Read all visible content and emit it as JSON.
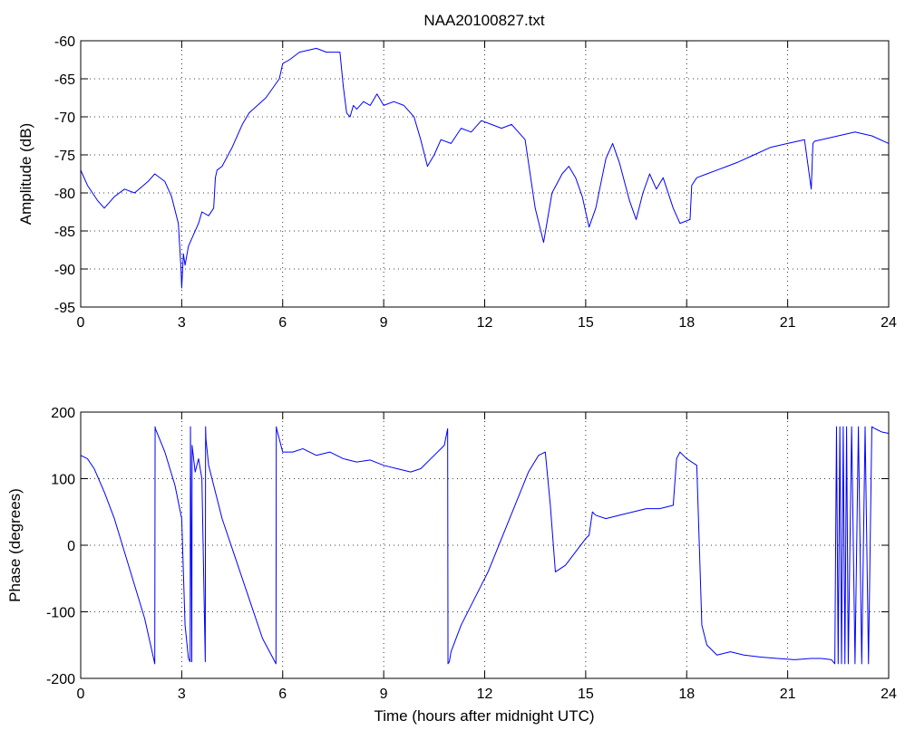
{
  "chart_data": [
    {
      "type": "line",
      "title": "NAA20100827.txt",
      "xlabel": "",
      "ylabel": "Amplitude (dB)",
      "xlim": [
        0,
        24
      ],
      "ylim": [
        -95,
        -60
      ],
      "xticks": [
        0,
        3,
        6,
        9,
        12,
        15,
        18,
        21,
        24
      ],
      "yticks": [
        -95,
        -90,
        -85,
        -80,
        -75,
        -70,
        -65,
        -60
      ],
      "grid": true,
      "color": "#0000ff",
      "series": [
        {
          "x": [
            0,
            0.2,
            0.5,
            0.7,
            1.0,
            1.3,
            1.6,
            2.0,
            2.2,
            2.5,
            2.7,
            2.9,
            2.98,
            3.0,
            3.05,
            3.1,
            3.2,
            3.3,
            3.5,
            3.6,
            3.8,
            3.95,
            4.0,
            4.05,
            4.2,
            4.5,
            4.8,
            5.0,
            5.5,
            5.9,
            6.0,
            6.2,
            6.5,
            7.0,
            7.3,
            7.7,
            7.8,
            7.9,
            8.0,
            8.1,
            8.2,
            8.4,
            8.6,
            8.8,
            9.0,
            9.3,
            9.6,
            9.9,
            10.1,
            10.3,
            10.5,
            10.7,
            11.0,
            11.3,
            11.6,
            11.9,
            12.2,
            12.5,
            12.8,
            13.2,
            13.5,
            13.75,
            14.0,
            14.3,
            14.5,
            14.7,
            14.9,
            15.1,
            15.3,
            15.6,
            15.8,
            16.0,
            16.3,
            16.5,
            16.7,
            16.9,
            17.1,
            17.3,
            17.6,
            17.8,
            18.1,
            18.15,
            18.3,
            18.6,
            18.9,
            19.2,
            19.5,
            20.0,
            20.5,
            21.0,
            21.5,
            21.7,
            21.75,
            21.8,
            22.0,
            22.5,
            23.0,
            23.5,
            24.0
          ],
          "y": [
            -77,
            -79,
            -81,
            -82,
            -80.5,
            -79.5,
            -80,
            -78.5,
            -77.5,
            -78.5,
            -80.5,
            -84,
            -90,
            -92.5,
            -88,
            -89.5,
            -87,
            -86,
            -84,
            -82.5,
            -83,
            -82,
            -78,
            -77,
            -76.5,
            -74,
            -71,
            -69.5,
            -67.5,
            -65,
            -63,
            -62.5,
            -61.5,
            -61,
            -61.5,
            -61.5,
            -66,
            -69.5,
            -70,
            -68.5,
            -69,
            -68,
            -68.5,
            -67,
            -68.5,
            -68,
            -68.5,
            -70,
            -73,
            -76.5,
            -75,
            -73,
            -73.5,
            -71.5,
            -72,
            -70.5,
            -71,
            -71.5,
            -71,
            -73,
            -82,
            -86.5,
            -80,
            -77.5,
            -76.5,
            -78,
            -80.5,
            -84.5,
            -82,
            -75.5,
            -73.5,
            -76,
            -81,
            -83.5,
            -80,
            -77.5,
            -79.5,
            -78,
            -82,
            -84,
            -83.5,
            -79,
            -78,
            -77.5,
            -77,
            -76.5,
            -76,
            -75,
            -74,
            -73.5,
            -73,
            -79.5,
            -73.5,
            -73.2,
            -73,
            -72.5,
            -72,
            -72.5,
            -73.5
          ]
        }
      ]
    },
    {
      "type": "line",
      "title": "",
      "xlabel": "Time (hours after midnight UTC)",
      "ylabel": "Phase (degrees)",
      "xlim": [
        0,
        24
      ],
      "ylim": [
        -200,
        200
      ],
      "xticks": [
        0,
        3,
        6,
        9,
        12,
        15,
        18,
        21,
        24
      ],
      "yticks": [
        -200,
        -100,
        0,
        100,
        200
      ],
      "grid": true,
      "color": "#0000ff",
      "series": [
        {
          "x": [
            0,
            0.2,
            0.4,
            0.7,
            1.0,
            1.3,
            1.6,
            1.9,
            2.2,
            2.21,
            2.22,
            2.5,
            2.8,
            3.0,
            3.05,
            3.1,
            3.2,
            3.25,
            3.26,
            3.3,
            3.31,
            3.4,
            3.5,
            3.6,
            3.7,
            3.71,
            3.72,
            3.8,
            3.9,
            4.2,
            4.6,
            5.0,
            5.4,
            5.8,
            5.81,
            5.82,
            6.0,
            6.3,
            6.6,
            7.0,
            7.4,
            7.8,
            8.2,
            8.6,
            9.0,
            9.4,
            9.8,
            10.1,
            10.4,
            10.8,
            10.9,
            10.91,
            10.95,
            11.0,
            11.3,
            11.7,
            12.1,
            12.5,
            12.9,
            13.3,
            13.6,
            13.8,
            13.95,
            14.1,
            14.4,
            14.7,
            15.0,
            15.1,
            15.2,
            15.3,
            15.6,
            16.0,
            16.4,
            16.8,
            17.2,
            17.6,
            17.7,
            17.8,
            18.0,
            18.3,
            18.45,
            18.6,
            18.9,
            19.3,
            19.7,
            20.2,
            20.7,
            21.2,
            21.7,
            22.0,
            22.3,
            22.4,
            22.45,
            22.5,
            22.55,
            22.6,
            22.65,
            22.7,
            22.75,
            22.8,
            22.9,
            23.0,
            23.1,
            23.2,
            23.3,
            23.4,
            23.5,
            23.6,
            23.8,
            24.0
          ],
          "y": [
            135,
            130,
            115,
            80,
            40,
            -10,
            -60,
            -110,
            -178,
            178,
            175,
            140,
            90,
            40,
            -40,
            -120,
            -170,
            -175,
            178,
            -175,
            150,
            110,
            130,
            100,
            -175,
            178,
            160,
            120,
            100,
            40,
            -20,
            -80,
            -140,
            -178,
            178,
            175,
            140,
            140,
            145,
            135,
            140,
            130,
            125,
            128,
            120,
            115,
            110,
            115,
            130,
            150,
            175,
            -178,
            -175,
            -160,
            -120,
            -80,
            -40,
            10,
            60,
            110,
            135,
            140,
            60,
            -40,
            -30,
            -10,
            10,
            15,
            50,
            45,
            40,
            45,
            50,
            55,
            55,
            60,
            130,
            140,
            130,
            120,
            -120,
            -150,
            -165,
            -160,
            -165,
            -168,
            -170,
            -172,
            -170,
            -170,
            -172,
            -178,
            178,
            -178,
            178,
            -178,
            178,
            -178,
            178,
            -178,
            178,
            -178,
            178,
            -178,
            178,
            -178,
            178,
            175,
            170,
            168
          ]
        }
      ]
    }
  ]
}
